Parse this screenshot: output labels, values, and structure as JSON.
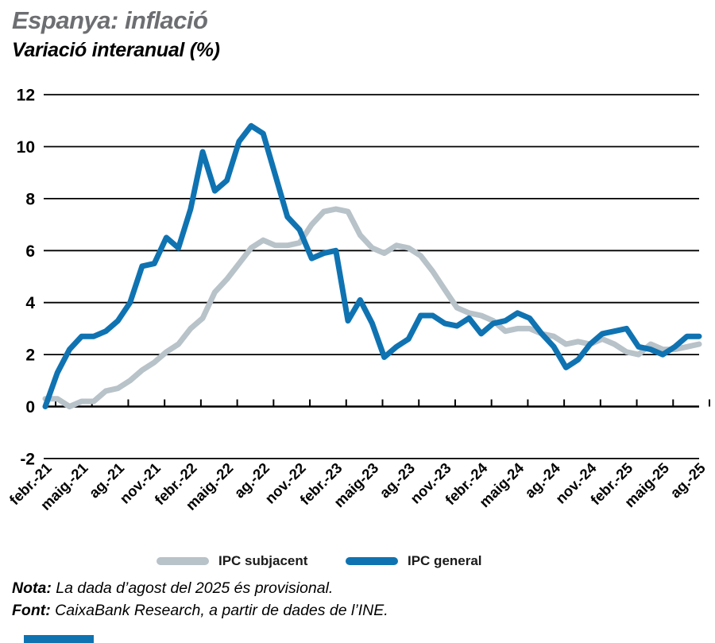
{
  "page": {
    "title": "Espanya: inflació",
    "subtitle": "Variació interanual (%)",
    "note_label": "Nota:",
    "note_text": " La dada d’agost del 2025 és provisional.",
    "source_label": "Font:",
    "source_text": " CaixaBank Research, a partir de dades de l’INE."
  },
  "colors": {
    "ipc_general_blue": "#0f73b2",
    "ipc_subjacent_gray": "#b8c2c9",
    "title_gray": "#6d6e71",
    "axis_black": "#000000",
    "brand_bar_blue": "#0f73b2"
  },
  "legend": [
    {
      "label": "IPC subjacent",
      "color": "#b8c2c9"
    },
    {
      "label": "IPC general",
      "color": "#0f73b2"
    }
  ],
  "chart_data": {
    "type": "line",
    "title": "Espanya: inflació",
    "ylabel": "Variació interanual (%)",
    "xlabel": "",
    "grid": true,
    "legend_position": "bottom",
    "ylim": [
      -2,
      12
    ],
    "ytick_step": 2,
    "months_between_xticks": 3,
    "x_tick_labels": [
      "febr.-21",
      "maig.-21",
      "ag.-21",
      "nov.-21",
      "febr.-22",
      "maig.-22",
      "ag.-22",
      "nov.-22",
      "febr.-23",
      "maig-23",
      "ag.-23",
      "nov.-23",
      "febr.-24",
      "maig-24",
      "ag.-24",
      "nov.-24",
      "febr.-25",
      "maig-25",
      "ag.-25"
    ],
    "series": [
      {
        "name": "IPC subjacent",
        "color": "#b8c2c9",
        "values": [
          0.3,
          0.3,
          0.0,
          0.2,
          0.2,
          0.6,
          0.7,
          1.0,
          1.4,
          1.7,
          2.1,
          2.4,
          3.0,
          3.4,
          4.4,
          4.9,
          5.5,
          6.1,
          6.4,
          6.2,
          6.2,
          6.3,
          7.0,
          7.5,
          7.6,
          7.5,
          6.6,
          6.1,
          5.9,
          6.2,
          6.1,
          5.8,
          5.2,
          4.5,
          3.8,
          3.6,
          3.5,
          3.3,
          2.9,
          3.0,
          3.0,
          2.8,
          2.7,
          2.4,
          2.5,
          2.4,
          2.6,
          2.4,
          2.1,
          2.0,
          2.4,
          2.2,
          2.2,
          2.3,
          2.4
        ]
      },
      {
        "name": "IPC general",
        "color": "#0f73b2",
        "values": [
          0.0,
          1.3,
          2.2,
          2.7,
          2.7,
          2.9,
          3.3,
          4.0,
          5.4,
          5.5,
          6.5,
          6.1,
          7.6,
          9.8,
          8.3,
          8.7,
          10.2,
          10.8,
          10.5,
          8.9,
          7.3,
          6.8,
          5.7,
          5.9,
          6.0,
          3.3,
          4.1,
          3.2,
          1.9,
          2.3,
          2.6,
          3.5,
          3.5,
          3.2,
          3.1,
          3.4,
          2.8,
          3.2,
          3.3,
          3.6,
          3.4,
          2.8,
          2.3,
          1.5,
          1.8,
          2.4,
          2.8,
          2.9,
          3.0,
          2.3,
          2.2,
          2.0,
          2.3,
          2.7,
          2.7
        ]
      }
    ]
  }
}
